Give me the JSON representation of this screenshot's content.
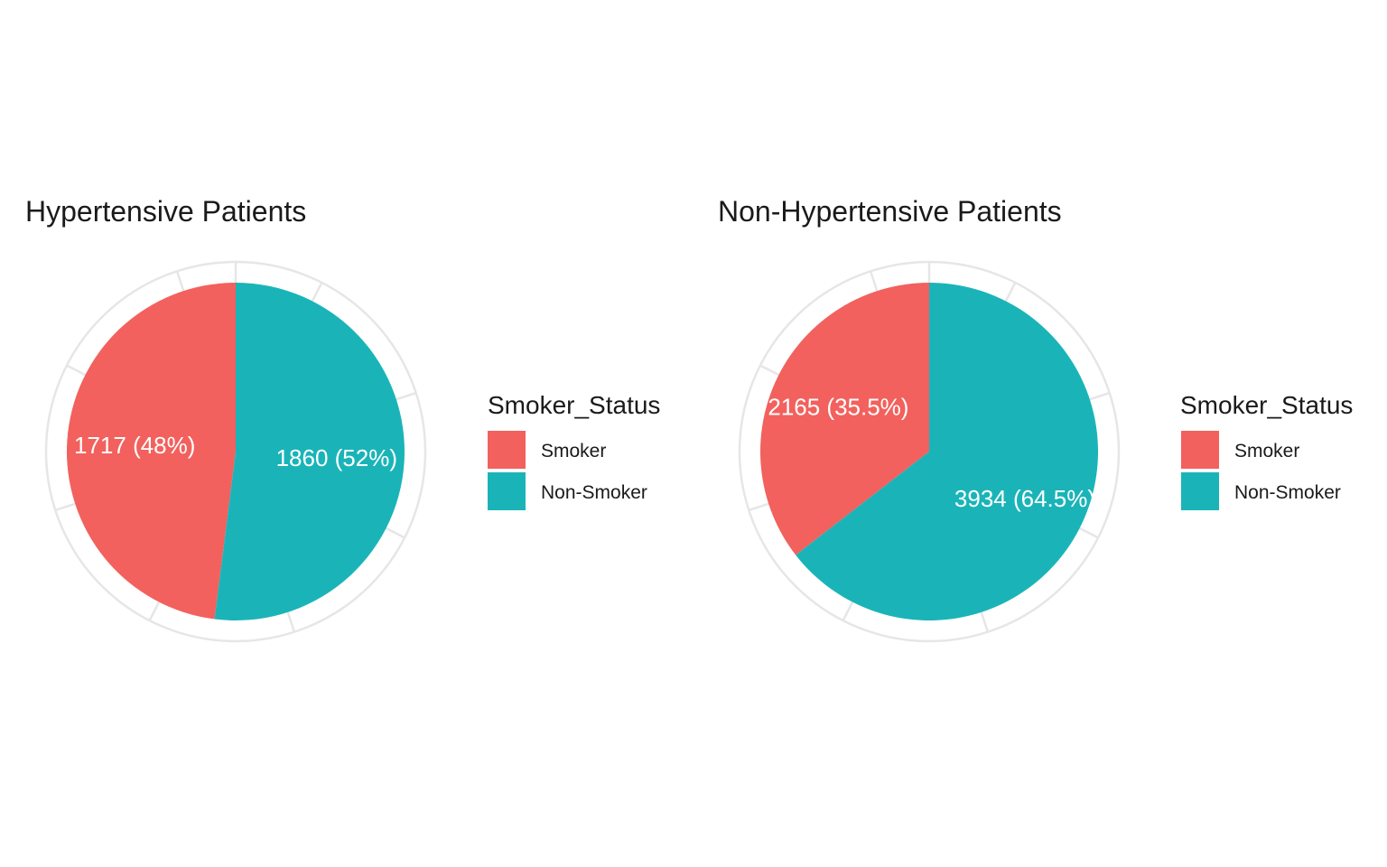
{
  "colors": {
    "background": "#ffffff",
    "grid": "#e6e6e6",
    "smoker": "#f2615d",
    "non_smoker": "#1ab4b8",
    "label_text": "#ffffff"
  },
  "chart_data": [
    {
      "type": "pie",
      "title": "Hypertensive Patients",
      "legend_title": "Smoker_Status",
      "legend_position": "right",
      "grid": true,
      "start_angle": "top",
      "direction": "counter-clockwise",
      "slices": [
        {
          "name": "Smoker",
          "value": 1717,
          "percent": 48,
          "label": "1717 (48%)",
          "color": "#f2615d"
        },
        {
          "name": "Non-Smoker",
          "value": 1860,
          "percent": 52,
          "label": "1860 (52%)",
          "color": "#1ab4b8"
        }
      ],
      "legend": [
        {
          "label": "Smoker",
          "color": "#f2615d"
        },
        {
          "label": "Non-Smoker",
          "color": "#1ab4b8"
        }
      ]
    },
    {
      "type": "pie",
      "title": "Non-Hypertensive Patients",
      "legend_title": "Smoker_Status",
      "legend_position": "right",
      "grid": true,
      "start_angle": "top",
      "direction": "counter-clockwise",
      "slices": [
        {
          "name": "Smoker",
          "value": 2165,
          "percent": 35.5,
          "label": "2165 (35.5%)",
          "color": "#f2615d"
        },
        {
          "name": "Non-Smoker",
          "value": 3934,
          "percent": 64.5,
          "label": "3934 (64.5%)",
          "color": "#1ab4b8"
        }
      ],
      "legend": [
        {
          "label": "Smoker",
          "color": "#f2615d"
        },
        {
          "label": "Non-Smoker",
          "color": "#1ab4b8"
        }
      ]
    }
  ]
}
